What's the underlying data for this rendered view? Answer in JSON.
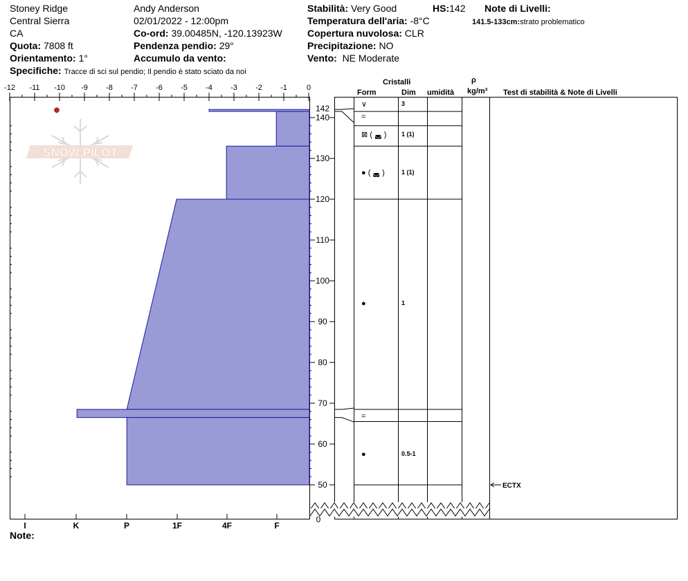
{
  "header": {
    "location": "Stoney Ridge",
    "range": "Central Sierra",
    "state": "CA",
    "elevation_label": "Quota:",
    "elevation_value": "7808 ft",
    "aspect_label": "Orientamento:",
    "aspect_value": "1°",
    "observer": "Andy Anderson",
    "datetime": "02/01/2022 - 12:00pm",
    "coord_label": "Co-ord:",
    "coord_value": "39.00485N, -120.13923W",
    "slope_label": "Pendenza pendio:",
    "slope_value": "29°",
    "wind_loading_label": "Accumulo da vento:",
    "wind_loading_value": "",
    "stability_label": "Stabilità:",
    "stability_value": "Very Good",
    "air_temp_label": "Temperatura dell'aria:",
    "air_temp_value": "-8°C",
    "sky_label": "Copertura nuvolosa:",
    "sky_value": "CLR",
    "precip_label": "Precipitazione:",
    "precip_value": "NO",
    "wind_label": "Vento:",
    "wind_value": "NE Moderate",
    "hs_label": "HS:",
    "hs_value": "142",
    "layer_notes_label": "Note di Livelli:",
    "layer_note_range": "141.5-133cm:",
    "layer_note_text": "strato problematico",
    "specifics_label": "Specifiche:",
    "specifics_value": "Tracce di sci sul pendio;  Il pendio è stato sciato da noi"
  },
  "columns": {
    "crystals": "Cristalli",
    "form": "Form",
    "size": "Dim",
    "moisture": "umidità",
    "rho": "ρ",
    "density_unit": "kg/m³",
    "tests": "Test di stabilità & Note di Livelli"
  },
  "footer": {
    "notes_label": "Note:"
  },
  "logo_text": "SNOW PILOT",
  "colors": {
    "hardness_fill": "#9a9ad6",
    "hardness_stroke": "#1a1aa0",
    "temp_point": "#cc2222"
  },
  "chart_data": {
    "type": "snow-profile",
    "temperature_axis": {
      "ticks": [
        -12,
        -11,
        -10,
        -9,
        -8,
        -7,
        -6,
        -5,
        -4,
        -3,
        -2,
        -1,
        0
      ],
      "range": [
        -12,
        0
      ]
    },
    "hardness_axis": {
      "ticks": [
        "I",
        "K",
        "P",
        "1F",
        "4F",
        "F"
      ]
    },
    "height_axis": {
      "ticks": [
        140,
        130,
        120,
        110,
        100,
        90,
        80,
        70,
        60,
        50
      ],
      "extra_top": "142",
      "bottom": "0",
      "range": [
        50,
        142
      ]
    },
    "temperature_points": [
      {
        "height": 142,
        "temp": -10
      }
    ],
    "hardness_layers": [
      {
        "top": 142,
        "bottom": 141.5,
        "hardness_top": -4,
        "hardness_bottom": -4
      },
      {
        "top": 141.5,
        "bottom": 133,
        "hardness_top": -1.3,
        "hardness_bottom": -1.3
      },
      {
        "top": 133,
        "bottom": 120,
        "hardness_top": -3.3,
        "hardness_bottom": -3.3
      },
      {
        "top": 120,
        "bottom": 68.5,
        "hardness_top": -5.3,
        "hardness_bottom": -7.3
      },
      {
        "top": 68.5,
        "bottom": 66.5,
        "hardness_top": -9.3,
        "hardness_bottom": -9.3
      },
      {
        "top": 66.5,
        "bottom": 50,
        "hardness_top": -7.3,
        "hardness_bottom": -7.3
      }
    ],
    "layers": [
      {
        "top": 142,
        "bottom": 141.5,
        "form": "∨",
        "size": "3"
      },
      {
        "top": 141.5,
        "bottom": 138,
        "form": "=",
        "size": ""
      },
      {
        "top": 138,
        "bottom": 133,
        "form": "⊠ ( ◛ )",
        "size": "1 (1)"
      },
      {
        "top": 133,
        "bottom": 120,
        "form": "● ( ◛ )",
        "size": "1 (1)"
      },
      {
        "top": 120,
        "bottom": 68.5,
        "form": "●",
        "size": "1"
      },
      {
        "top": 68.5,
        "bottom": 65.5,
        "form": "=",
        "size": ""
      },
      {
        "top": 65.5,
        "bottom": 50,
        "form": "●",
        "size": "0.5-1"
      }
    ],
    "stability_tests": [
      {
        "height": 50,
        "label": "ECTX"
      }
    ]
  }
}
